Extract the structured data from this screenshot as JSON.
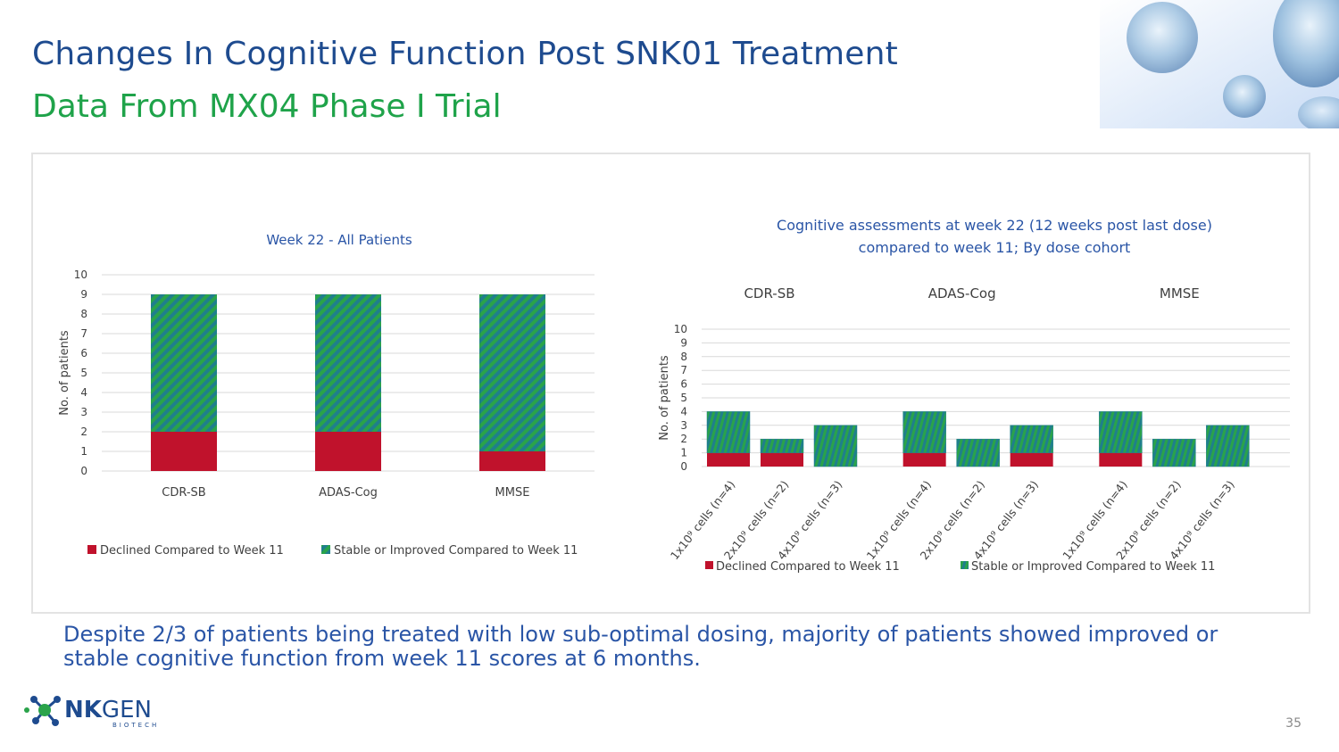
{
  "slide": {
    "title": "Changes In Cognitive Function Post SNK01 Treatment",
    "subtitle": "Data From MX04 Phase I Trial",
    "summary": "Despite 2/3 of patients being treated with low sub-optimal dosing, majority of patients showed improved or stable cognitive function from week 11 scores at 6 months.",
    "page_number": "35",
    "logo": {
      "brand": "NKGEN",
      "tagline": "BIOTECH"
    }
  },
  "colors": {
    "declined": "#c0122c",
    "stable_teal": "#1f7f8c",
    "stable_green": "#2aa34a",
    "title_blue": "#1e4b8f",
    "subtitle_green": "#1fa34a",
    "text_blue": "#2a55a6"
  },
  "chart_data": [
    {
      "type": "bar",
      "stacked": true,
      "title": "Week 22 - All Patients",
      "ylabel": "No. of patients",
      "xlabel": "",
      "ylim": [
        0,
        10
      ],
      "yticks": [
        0,
        1,
        2,
        3,
        4,
        5,
        6,
        7,
        8,
        9,
        10
      ],
      "grid": true,
      "categories": [
        "CDR-SB",
        "ADAS-Cog",
        "MMSE"
      ],
      "series": [
        {
          "name": "Declined Compared to Week 11",
          "values": [
            2,
            2,
            1
          ]
        },
        {
          "name": "Stable or Improved Compared to Week 11",
          "values": [
            7,
            7,
            8
          ]
        }
      ],
      "legend": "bottom"
    },
    {
      "type": "bar",
      "stacked": true,
      "title_lines": [
        "Cognitive assessments at week 22 (12 weeks post last dose)",
        "compared to week 11; By dose cohort"
      ],
      "ylabel": "No. of patients",
      "ylim": [
        0,
        10
      ],
      "yticks": [
        0,
        1,
        2,
        3,
        4,
        5,
        6,
        7,
        8,
        9,
        10
      ],
      "grid": true,
      "groups": [
        {
          "name": "CDR-SB",
          "categories": [
            "1x10⁹ cells (n=4)",
            "2x10⁹ cells (n=2)",
            "4x10⁹ cells (n=3)"
          ]
        },
        {
          "name": "ADAS-Cog",
          "categories": [
            "1x10⁹ cells (n=4)",
            "2x10⁹ cells (n=2)",
            "4x10⁹ cells (n=3)"
          ]
        },
        {
          "name": "MMSE",
          "categories": [
            "1x10⁹ cells (n=4)",
            "2x10⁹ cells (n=2)",
            "4x10⁹ cells (n=3)"
          ]
        }
      ],
      "series": [
        {
          "name": "Declined Compared to Week 11",
          "values": [
            1,
            1,
            0,
            1,
            0,
            1,
            1,
            0,
            0
          ]
        },
        {
          "name": "Stable or Improved Compared to Week 11",
          "values": [
            3,
            1,
            3,
            3,
            2,
            2,
            3,
            2,
            3
          ]
        }
      ],
      "legend": "bottom"
    }
  ]
}
